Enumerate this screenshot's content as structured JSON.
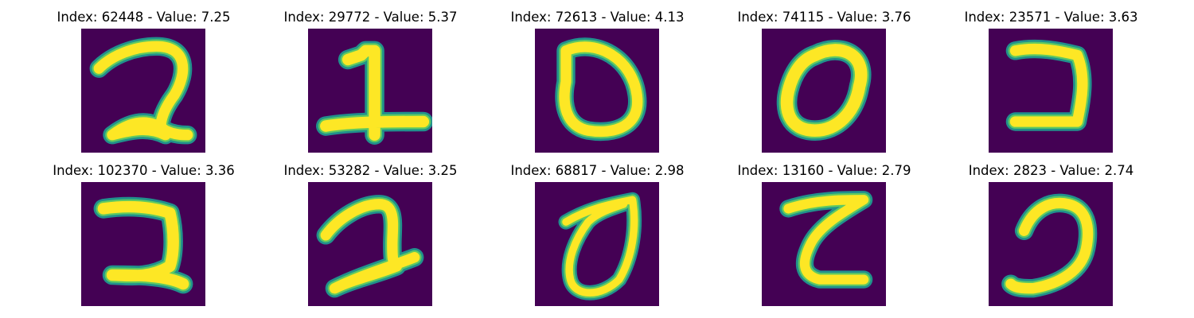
{
  "colors": {
    "background": "#440154",
    "stroke_edge": "#21918c",
    "stroke_mid": "#5ec962",
    "stroke_core": "#fde725"
  },
  "images": [
    {
      "title": "Index: 62448 - Value: 7.25",
      "digit": "2"
    },
    {
      "title": "Index: 29772 - Value: 5.37",
      "digit": "1"
    },
    {
      "title": "Index: 72613 - Value: 4.13",
      "digit": "0"
    },
    {
      "title": "Index: 74115 - Value: 3.76",
      "digit": "0"
    },
    {
      "title": "Index: 23571 - Value: 3.63",
      "digit": "2"
    },
    {
      "title": "Index: 102370 - Value: 3.36",
      "digit": "2"
    },
    {
      "title": "Index: 53282 - Value: 3.25",
      "digit": "2"
    },
    {
      "title": "Index: 68817 - Value: 2.98",
      "digit": "0"
    },
    {
      "title": "Index: 13160 - Value: 2.79",
      "digit": "2"
    },
    {
      "title": "Index: 2823 - Value: 2.74",
      "digit": "2"
    }
  ]
}
